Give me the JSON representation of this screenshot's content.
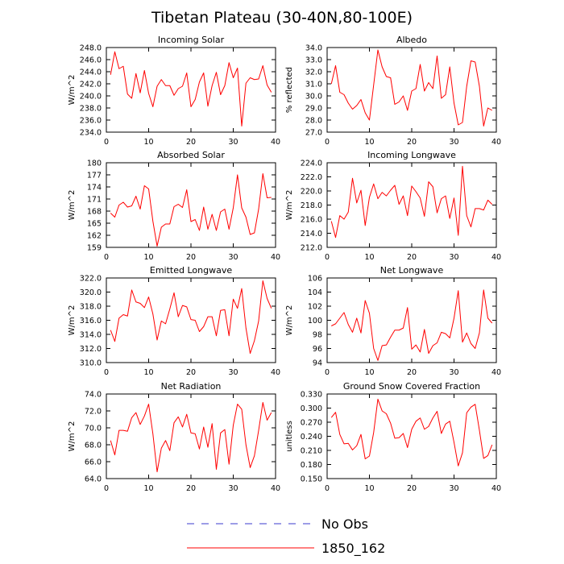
{
  "title": "Tibetan Plateau (30-40N,80-100E)",
  "legend": {
    "placement": "bottom-center",
    "items": [
      {
        "label": "No Obs",
        "color": "#3b3bcf",
        "style": "dashed"
      },
      {
        "label": "1850_162",
        "color": "#ff0000",
        "style": "solid"
      }
    ]
  },
  "chart_data": [
    {
      "type": "line",
      "title": "Incoming Solar",
      "ylabel": "W/m^2",
      "xlim": [
        0,
        40
      ],
      "xticks": [
        0,
        10,
        20,
        30,
        40
      ],
      "ylim": [
        234,
        248
      ],
      "yticks": [
        "234.0",
        "236.0",
        "238.0",
        "240.0",
        "242.0",
        "244.0",
        "246.0",
        "248.0"
      ],
      "series": [
        {
          "color": "#ff0000",
          "x": [
            1,
            2,
            3,
            4,
            5,
            6,
            7,
            8,
            9,
            10,
            11,
            12,
            13,
            14,
            15,
            16,
            17,
            18,
            19,
            20,
            21,
            22,
            23,
            24,
            25,
            26,
            27,
            28,
            29,
            30,
            31,
            32,
            33,
            34,
            35,
            36,
            37,
            38,
            39
          ],
          "y": [
            243.5,
            247.3,
            244.5,
            244.9,
            240.3,
            239.6,
            243.7,
            240.5,
            244.2,
            240.4,
            238.2,
            241.6,
            242.7,
            241.7,
            241.7,
            240.1,
            241.2,
            241.6,
            243.8,
            238.2,
            239.4,
            242.3,
            243.8,
            238.3,
            241.7,
            243.9,
            240.2,
            241.7,
            245.5,
            243.0,
            244.6,
            235.0,
            242.1,
            243.0,
            242.7,
            242.8,
            245.0,
            241.8,
            240.6
          ]
        }
      ]
    },
    {
      "type": "line",
      "title": "Albedo",
      "ylabel": "% reflected",
      "xlim": [
        0,
        40
      ],
      "xticks": [
        0,
        10,
        20,
        30,
        40
      ],
      "ylim": [
        27,
        34
      ],
      "yticks": [
        "27.0",
        "28.0",
        "29.0",
        "30.0",
        "31.0",
        "32.0",
        "33.0",
        "34.0"
      ],
      "series": [
        {
          "color": "#ff0000",
          "x": [
            1,
            2,
            3,
            4,
            5,
            6,
            7,
            8,
            9,
            10,
            11,
            12,
            13,
            14,
            15,
            16,
            17,
            18,
            19,
            20,
            21,
            22,
            23,
            24,
            25,
            26,
            27,
            28,
            29,
            30,
            31,
            32,
            33,
            34,
            35,
            36,
            37,
            38,
            39
          ],
          "y": [
            31.0,
            32.5,
            30.3,
            30.1,
            29.4,
            28.9,
            29.2,
            29.7,
            28.6,
            28.0,
            30.9,
            33.8,
            32.4,
            31.6,
            31.5,
            29.3,
            29.5,
            30.0,
            28.8,
            30.4,
            30.6,
            32.6,
            30.4,
            31.1,
            30.6,
            33.3,
            29.8,
            30.1,
            32.4,
            29.4,
            27.6,
            27.8,
            30.8,
            32.9,
            32.8,
            30.8,
            27.5,
            29.0,
            28.8
          ]
        }
      ]
    },
    {
      "type": "line",
      "title": "Absorbed Solar",
      "ylabel": "W/m^2",
      "xlim": [
        0,
        40
      ],
      "xticks": [
        0,
        10,
        20,
        30,
        40
      ],
      "ylim": [
        159,
        180
      ],
      "yticks": [
        "159",
        "162",
        "165",
        "168",
        "171",
        "174",
        "177",
        "180"
      ],
      "series": [
        {
          "color": "#ff0000",
          "x": [
            1,
            2,
            3,
            4,
            5,
            6,
            7,
            8,
            9,
            10,
            11,
            12,
            13,
            14,
            15,
            16,
            17,
            18,
            19,
            20,
            21,
            22,
            23,
            24,
            25,
            26,
            27,
            28,
            29,
            30,
            31,
            32,
            33,
            34,
            35,
            36,
            37,
            38,
            39
          ],
          "y": [
            167.5,
            166.5,
            169.5,
            170.2,
            169.0,
            169.3,
            171.7,
            168.5,
            174.3,
            173.5,
            165.5,
            159.3,
            164.0,
            164.8,
            164.8,
            169.1,
            169.7,
            168.9,
            173.3,
            165.4,
            165.9,
            163.2,
            169.0,
            163.5,
            167.2,
            163.2,
            167.8,
            168.5,
            163.5,
            168.8,
            177.0,
            168.8,
            166.5,
            162.2,
            162.6,
            168.5,
            177.3,
            171.3,
            171.4
          ]
        }
      ]
    },
    {
      "type": "line",
      "title": "Incoming Longwave",
      "ylabel": "W/m^2",
      "xlim": [
        0,
        40
      ],
      "xticks": [
        0,
        10,
        20,
        30,
        40
      ],
      "ylim": [
        212,
        224
      ],
      "yticks": [
        "212.0",
        "214.0",
        "216.0",
        "218.0",
        "220.0",
        "222.0",
        "224.0"
      ],
      "series": [
        {
          "color": "#ff0000",
          "x": [
            1,
            2,
            3,
            4,
            5,
            6,
            7,
            8,
            9,
            10,
            11,
            12,
            13,
            14,
            15,
            16,
            17,
            18,
            19,
            20,
            21,
            22,
            23,
            24,
            25,
            26,
            27,
            28,
            29,
            30,
            31,
            32,
            33,
            34,
            35,
            36,
            37,
            38,
            39
          ],
          "y": [
            215.7,
            213.4,
            216.5,
            216.0,
            217.0,
            221.8,
            218.3,
            220.1,
            215.1,
            219.1,
            221.0,
            218.9,
            219.8,
            219.3,
            220.1,
            220.8,
            218.1,
            219.3,
            216.5,
            220.7,
            219.9,
            219.0,
            216.4,
            221.3,
            220.6,
            216.9,
            218.9,
            219.3,
            216.1,
            219.0,
            213.7,
            223.5,
            216.5,
            214.9,
            217.5,
            217.5,
            217.3,
            218.7,
            218.1
          ]
        }
      ]
    },
    {
      "type": "line",
      "title": "Emitted Longwave",
      "ylabel": "W/m^2",
      "xlim": [
        0,
        40
      ],
      "xticks": [
        0,
        10,
        20,
        30,
        40
      ],
      "ylim": [
        310,
        322
      ],
      "yticks": [
        "310.0",
        "312.0",
        "314.0",
        "316.0",
        "318.0",
        "320.0",
        "322.0"
      ],
      "series": [
        {
          "color": "#ff0000",
          "x": [
            1,
            2,
            3,
            4,
            5,
            6,
            7,
            8,
            9,
            10,
            11,
            12,
            13,
            14,
            15,
            16,
            17,
            18,
            19,
            20,
            21,
            22,
            23,
            24,
            25,
            26,
            27,
            28,
            29,
            30,
            31,
            32,
            33,
            34,
            35,
            36,
            37,
            38,
            39
          ],
          "y": [
            314.6,
            313.0,
            316.3,
            316.8,
            316.6,
            320.3,
            318.6,
            318.4,
            317.8,
            319.3,
            316.9,
            313.2,
            315.9,
            315.5,
            317.6,
            319.9,
            316.5,
            318.1,
            317.9,
            316.1,
            316.0,
            314.4,
            315.1,
            316.5,
            316.5,
            313.8,
            317.4,
            317.5,
            313.8,
            319.0,
            317.7,
            320.5,
            314.9,
            311.3,
            313.1,
            315.9,
            321.6,
            319.1,
            317.7
          ]
        }
      ]
    },
    {
      "type": "line",
      "title": "Net Longwave",
      "ylabel": "W/m^2",
      "xlim": [
        0,
        40
      ],
      "xticks": [
        0,
        10,
        20,
        30,
        40
      ],
      "ylim": [
        94,
        106
      ],
      "yticks": [
        "94",
        "96",
        "98",
        "100",
        "102",
        "104",
        "106"
      ],
      "series": [
        {
          "color": "#ff0000",
          "x": [
            1,
            2,
            3,
            4,
            5,
            6,
            7,
            8,
            9,
            10,
            11,
            12,
            13,
            14,
            15,
            16,
            17,
            18,
            19,
            20,
            21,
            22,
            23,
            24,
            25,
            26,
            27,
            28,
            29,
            30,
            31,
            32,
            33,
            34,
            35,
            36,
            37,
            38,
            39
          ],
          "y": [
            99.2,
            99.5,
            100.3,
            101.1,
            99.4,
            98.3,
            100.3,
            98.2,
            102.8,
            101.0,
            96.0,
            94.3,
            96.4,
            96.5,
            97.6,
            98.6,
            98.6,
            98.9,
            101.8,
            95.9,
            96.5,
            95.5,
            98.7,
            95.3,
            96.4,
            96.8,
            98.3,
            98.1,
            97.5,
            100.3,
            104.2,
            96.9,
            98.2,
            96.7,
            96.0,
            98.2,
            104.3,
            100.3,
            99.6
          ]
        }
      ]
    },
    {
      "type": "line",
      "title": "Net Radiation",
      "ylabel": "W/m^2",
      "xlim": [
        0,
        40
      ],
      "xticks": [
        0,
        10,
        20,
        30,
        40
      ],
      "ylim": [
        64,
        74
      ],
      "yticks": [
        "64.0",
        "66.0",
        "68.0",
        "70.0",
        "72.0",
        "74.0"
      ],
      "series": [
        {
          "color": "#ff0000",
          "x": [
            1,
            2,
            3,
            4,
            5,
            6,
            7,
            8,
            9,
            10,
            11,
            12,
            13,
            14,
            15,
            16,
            17,
            18,
            19,
            20,
            21,
            22,
            23,
            24,
            25,
            26,
            27,
            28,
            29,
            30,
            31,
            32,
            33,
            34,
            35,
            36,
            37,
            38,
            39
          ],
          "y": [
            68.5,
            66.8,
            69.7,
            69.7,
            69.6,
            71.2,
            71.8,
            70.4,
            71.4,
            72.8,
            69.3,
            64.8,
            67.6,
            68.5,
            67.3,
            70.6,
            71.3,
            70.1,
            71.6,
            69.4,
            69.3,
            67.5,
            70.1,
            67.7,
            70.5,
            65.1,
            69.4,
            69.8,
            65.7,
            70.3,
            72.8,
            72.2,
            68.0,
            65.3,
            66.7,
            69.7,
            73.0,
            70.9,
            71.8
          ]
        }
      ]
    },
    {
      "type": "line",
      "title": "Ground Snow Covered Fraction",
      "ylabel": "unitless",
      "xlim": [
        0,
        40
      ],
      "xticks": [
        0,
        10,
        20,
        30,
        40
      ],
      "ylim": [
        0.15,
        0.33
      ],
      "yticks": [
        "0.150",
        "0.180",
        "0.210",
        "0.240",
        "0.270",
        "0.300",
        "0.330"
      ],
      "series": [
        {
          "color": "#ff0000",
          "x": [
            1,
            2,
            3,
            4,
            5,
            6,
            7,
            8,
            9,
            10,
            11,
            12,
            13,
            14,
            15,
            16,
            17,
            18,
            19,
            20,
            21,
            22,
            23,
            24,
            25,
            26,
            27,
            28,
            29,
            30,
            31,
            32,
            33,
            34,
            35,
            36,
            37,
            38,
            39
          ],
          "y": [
            0.28,
            0.291,
            0.244,
            0.224,
            0.225,
            0.211,
            0.22,
            0.244,
            0.192,
            0.198,
            0.248,
            0.319,
            0.294,
            0.288,
            0.268,
            0.236,
            0.237,
            0.246,
            0.216,
            0.255,
            0.272,
            0.279,
            0.255,
            0.261,
            0.279,
            0.293,
            0.246,
            0.266,
            0.272,
            0.227,
            0.177,
            0.205,
            0.29,
            0.302,
            0.308,
            0.253,
            0.193,
            0.199,
            0.222
          ]
        }
      ]
    }
  ]
}
